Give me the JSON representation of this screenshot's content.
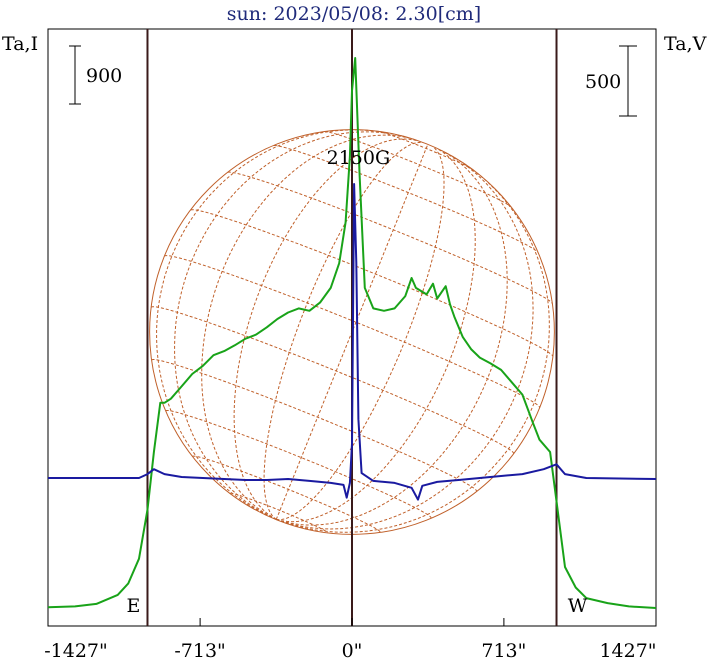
{
  "chart_data": {
    "type": "line",
    "title": "sun: 2023/05/08: 2.30[cm]",
    "left_axis_label": "Ta,I",
    "right_axis_label": "Ta,V",
    "left_scale_bar": "900",
    "right_scale_bar": "500",
    "x_tick_labels": [
      "-1427\"",
      "-713\"",
      "0\"",
      "713\"",
      "1427\""
    ],
    "x_ticks": [
      -1427,
      -713,
      0,
      713,
      1427
    ],
    "xlim": [
      -1427,
      1427
    ],
    "limb_markers": {
      "east_label": "E",
      "west_label": "W",
      "east_x": -960,
      "west_x": 960
    },
    "solar_radius_arcsec": 950,
    "annotation": "2150G",
    "annotation_x": 30,
    "grid": false,
    "series": [
      {
        "key": "I",
        "color": "#19a319",
        "points": [
          [
            -1427,
            0.01
          ],
          [
            -1300,
            0.02
          ],
          [
            -1200,
            0.05
          ],
          [
            -1100,
            0.16
          ],
          [
            -1050,
            0.3
          ],
          [
            -1000,
            0.6
          ],
          [
            -960,
            1.2
          ],
          [
            -930,
            1.9
          ],
          [
            -900,
            2.5
          ],
          [
            -880,
            2.5
          ],
          [
            -850,
            2.55
          ],
          [
            -800,
            2.7
          ],
          [
            -750,
            2.85
          ],
          [
            -700,
            2.95
          ],
          [
            -650,
            3.08
          ],
          [
            -600,
            3.13
          ],
          [
            -550,
            3.2
          ],
          [
            -500,
            3.28
          ],
          [
            -450,
            3.33
          ],
          [
            -400,
            3.42
          ],
          [
            -350,
            3.52
          ],
          [
            -300,
            3.6
          ],
          [
            -250,
            3.65
          ],
          [
            -200,
            3.62
          ],
          [
            -150,
            3.72
          ],
          [
            -100,
            3.9
          ],
          [
            -60,
            4.2
          ],
          [
            -30,
            4.7
          ],
          [
            -10,
            5.5
          ],
          [
            0,
            6.3
          ],
          [
            15,
            6.7
          ],
          [
            35,
            5.3
          ],
          [
            60,
            3.9
          ],
          [
            100,
            3.65
          ],
          [
            150,
            3.62
          ],
          [
            200,
            3.65
          ],
          [
            250,
            3.8
          ],
          [
            280,
            4.02
          ],
          [
            300,
            3.9
          ],
          [
            350,
            3.82
          ],
          [
            380,
            3.95
          ],
          [
            400,
            3.77
          ],
          [
            440,
            3.92
          ],
          [
            460,
            3.7
          ],
          [
            480,
            3.55
          ],
          [
            520,
            3.3
          ],
          [
            560,
            3.15
          ],
          [
            600,
            3.05
          ],
          [
            650,
            2.98
          ],
          [
            700,
            2.9
          ],
          [
            750,
            2.75
          ],
          [
            800,
            2.6
          ],
          [
            850,
            2.25
          ],
          [
            880,
            2.05
          ],
          [
            930,
            1.9
          ],
          [
            960,
            1.3
          ],
          [
            1000,
            0.5
          ],
          [
            1050,
            0.25
          ],
          [
            1100,
            0.12
          ],
          [
            1200,
            0.06
          ],
          [
            1300,
            0.02
          ],
          [
            1427,
            0.0
          ]
        ]
      },
      {
        "key": "V",
        "color": "#1a1aa0",
        "points": [
          [
            -1427,
            0.0
          ],
          [
            -1000,
            0.0
          ],
          [
            -960,
            0.04
          ],
          [
            -930,
            0.09
          ],
          [
            -880,
            0.04
          ],
          [
            -800,
            0.01
          ],
          [
            -700,
            0.0
          ],
          [
            -600,
            -0.01
          ],
          [
            -500,
            -0.02
          ],
          [
            -400,
            -0.02
          ],
          [
            -300,
            -0.01
          ],
          [
            -200,
            -0.03
          ],
          [
            -100,
            -0.05
          ],
          [
            -40,
            -0.07
          ],
          [
            -25,
            -0.2
          ],
          [
            -10,
            -0.05
          ],
          [
            0,
            0.35
          ],
          [
            10,
            3.0
          ],
          [
            20,
            2.2
          ],
          [
            30,
            0.6
          ],
          [
            45,
            0.05
          ],
          [
            100,
            -0.03
          ],
          [
            200,
            -0.05
          ],
          [
            280,
            -0.1
          ],
          [
            310,
            -0.22
          ],
          [
            330,
            -0.08
          ],
          [
            400,
            -0.04
          ],
          [
            500,
            -0.02
          ],
          [
            600,
            0.0
          ],
          [
            700,
            0.02
          ],
          [
            800,
            0.04
          ],
          [
            900,
            0.09
          ],
          [
            960,
            0.14
          ],
          [
            1000,
            0.04
          ],
          [
            1100,
            0.0
          ],
          [
            1427,
            -0.01
          ]
        ]
      }
    ]
  }
}
